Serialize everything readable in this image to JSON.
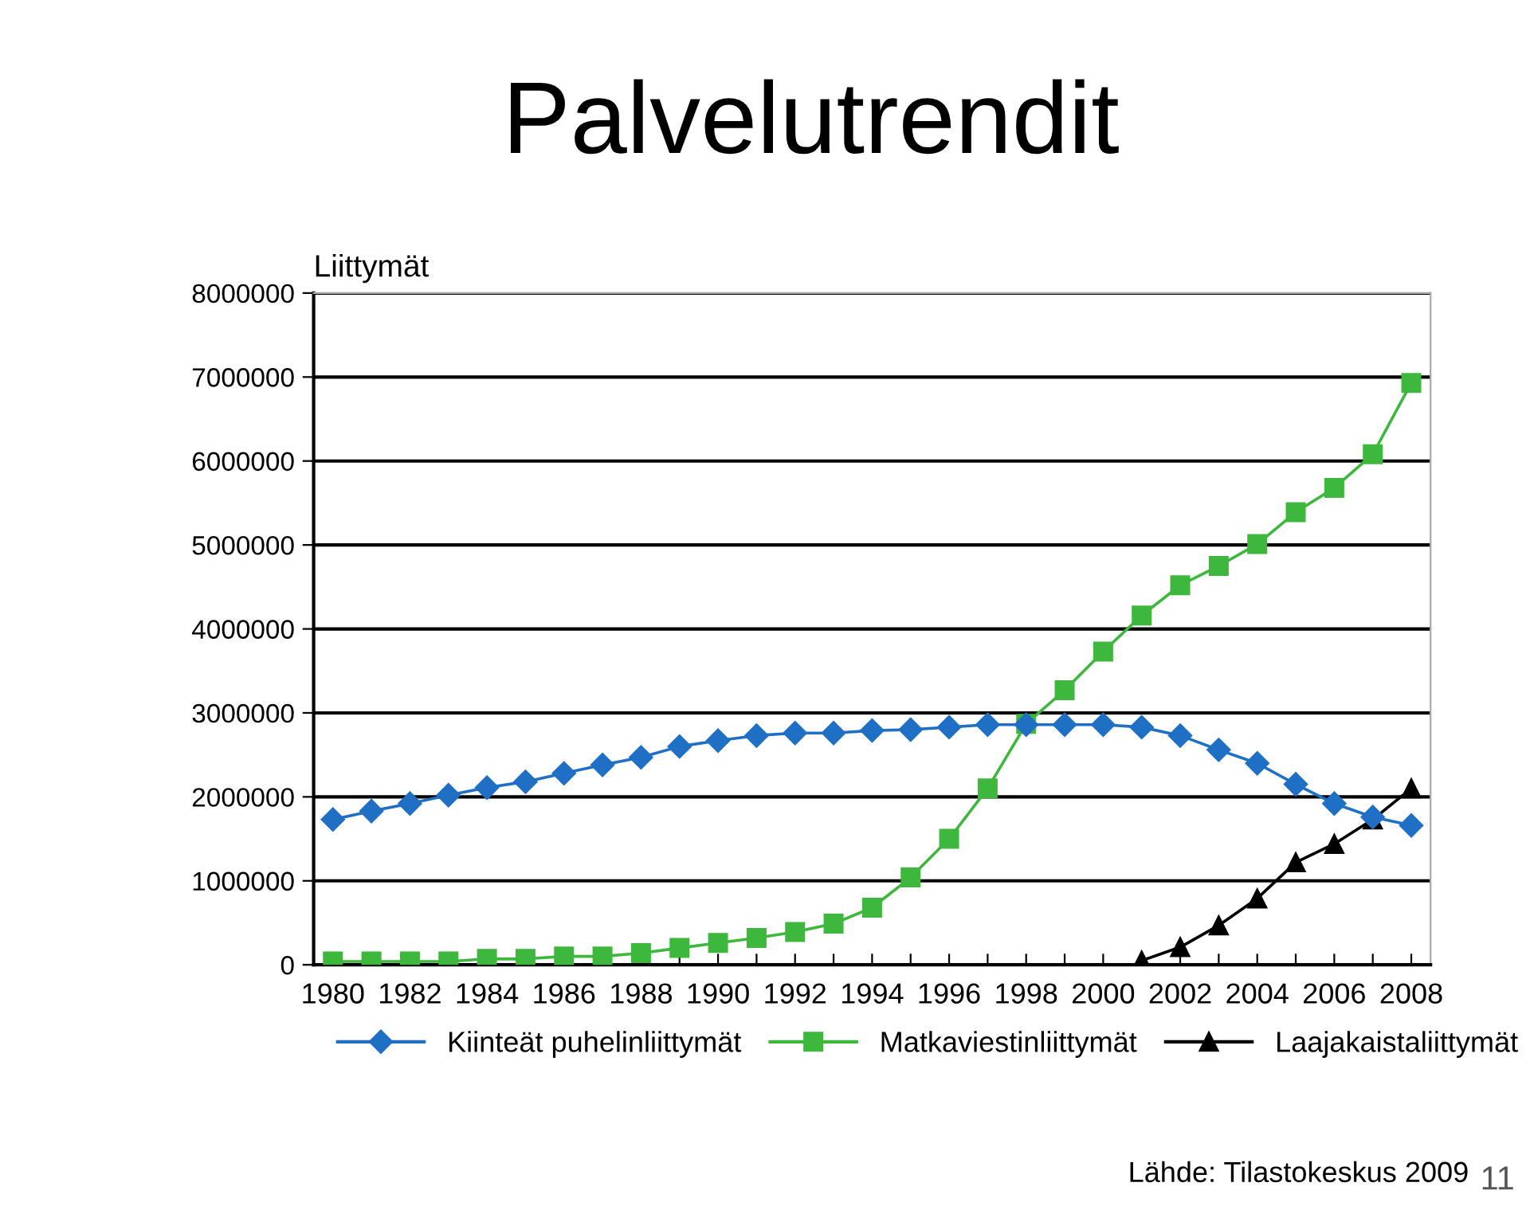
{
  "chart_data": {
    "type": "line",
    "title": "Palvelutrendit",
    "ylabel": "Liittymät",
    "categories": [
      "1980",
      null,
      "1982",
      null,
      "1984",
      null,
      "1986",
      null,
      "1988",
      null,
      "1990",
      null,
      "1992",
      null,
      "1994",
      null,
      "1996",
      null,
      "1998",
      null,
      "2000",
      null,
      "2002",
      null,
      "2004",
      null,
      "2006",
      null,
      "2008"
    ],
    "series": [
      {
        "name": "Kiinteät puhelinliittymät",
        "color": "#1f6fc5",
        "marker": "diamond",
        "values": [
          1730000,
          1830000,
          1920000,
          2020000,
          2110000,
          2180000,
          2280000,
          2380000,
          2470000,
          2600000,
          2670000,
          2730000,
          2760000,
          2760000,
          2790000,
          2800000,
          2830000,
          2860000,
          2860000,
          2860000,
          2860000,
          2830000,
          2730000,
          2560000,
          2400000,
          2150000,
          1920000,
          1760000,
          1660000
        ]
      },
      {
        "name": "Matkaviestinliittymät",
        "color": "#3db83d",
        "marker": "square",
        "values": [
          40000,
          40000,
          40000,
          40000,
          70000,
          70000,
          100000,
          100000,
          140000,
          200000,
          260000,
          320000,
          390000,
          490000,
          680000,
          1040000,
          1500000,
          2100000,
          2870000,
          3270000,
          3730000,
          4160000,
          4520000,
          4750000,
          5010000,
          5390000,
          5680000,
          6080000,
          6930000
        ]
      },
      {
        "name": "Laajakaistaliittymät",
        "color": "#000000",
        "marker": "triangle",
        "values": [
          null,
          null,
          null,
          null,
          null,
          null,
          null,
          null,
          null,
          null,
          null,
          null,
          null,
          null,
          null,
          null,
          null,
          null,
          null,
          null,
          null,
          50000,
          210000,
          470000,
          790000,
          1220000,
          1440000,
          1730000,
          2100000
        ]
      }
    ],
    "ylim": [
      0,
      8000000
    ],
    "yticks": [
      0,
      1000000,
      2000000,
      3000000,
      4000000,
      5000000,
      6000000,
      7000000,
      8000000
    ],
    "grid": "y",
    "legend": "bottom",
    "annotations": [
      "Lähde: Tilastokeskus 2009",
      "11"
    ]
  }
}
